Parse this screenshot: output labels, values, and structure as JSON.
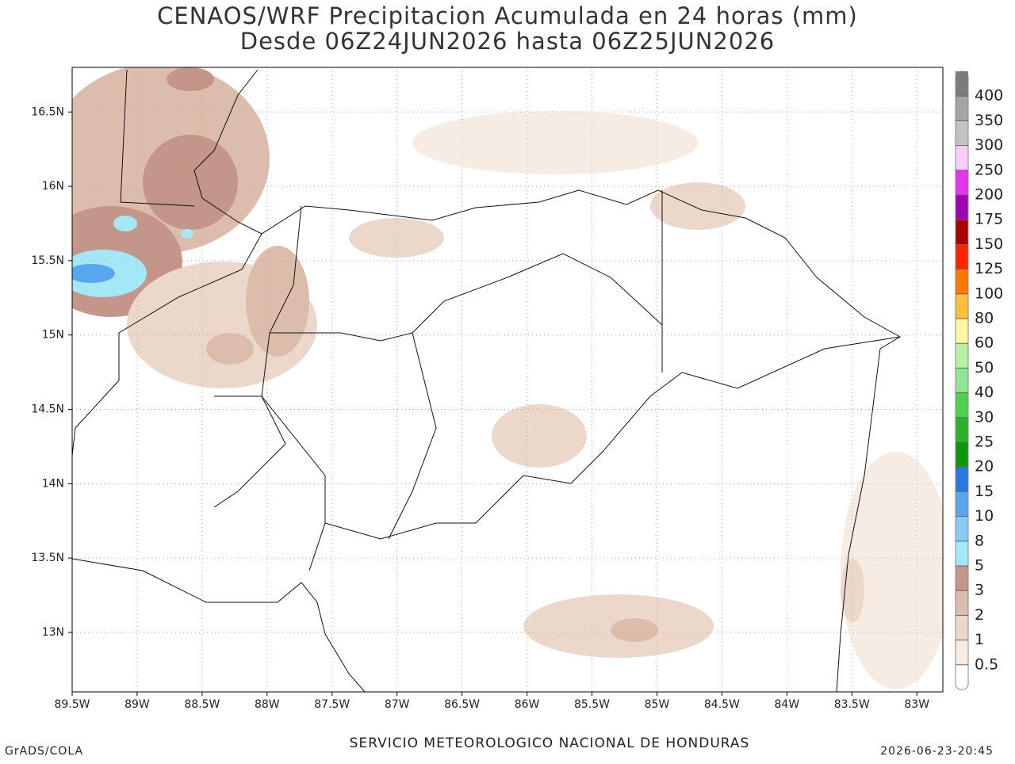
{
  "title": [
    "CENAOS/WRF Precipitacion Acumulada en 24 horas (mm)",
    "Desde 06Z24JUN2026 hasta 06Z25JUN2026"
  ],
  "map": {
    "xlim": [
      -89.5,
      -82.8
    ],
    "ylim": [
      12.6,
      16.8
    ],
    "xticks": [
      {
        "value": -89.5,
        "label": "89.5W"
      },
      {
        "value": -89,
        "label": "89W"
      },
      {
        "value": -88.5,
        "label": "88.5W"
      },
      {
        "value": -88,
        "label": "88W"
      },
      {
        "value": -87.5,
        "label": "87.5W"
      },
      {
        "value": -87,
        "label": "87W"
      },
      {
        "value": -86.5,
        "label": "86.5W"
      },
      {
        "value": -86,
        "label": "86W"
      },
      {
        "value": -85.5,
        "label": "85.5W"
      },
      {
        "value": -85,
        "label": "85W"
      },
      {
        "value": -84.5,
        "label": "84.5W"
      },
      {
        "value": -84,
        "label": "84W"
      },
      {
        "value": -83.5,
        "label": "83.5W"
      },
      {
        "value": -83,
        "label": "83W"
      }
    ],
    "yticks": [
      {
        "value": 16.5,
        "label": "16.5N"
      },
      {
        "value": 16,
        "label": "16N"
      },
      {
        "value": 15.5,
        "label": "15.5N"
      },
      {
        "value": 15,
        "label": "15N"
      },
      {
        "value": 14.5,
        "label": "14.5N"
      },
      {
        "value": 14,
        "label": "14N"
      },
      {
        "value": 13.5,
        "label": "13.5N"
      },
      {
        "value": 13,
        "label": "13N"
      }
    ]
  },
  "colorbar": {
    "levels": [
      0.5,
      1,
      2,
      3,
      5,
      8,
      10,
      15,
      20,
      25,
      30,
      40,
      50,
      60,
      80,
      100,
      125,
      150,
      175,
      200,
      250,
      300,
      350,
      400
    ],
    "colors": [
      "#ffffff",
      "#f6ece4",
      "#ecd8cb",
      "#dcbcaa",
      "#c4968a",
      "#a4e8f8",
      "#8ccaf5",
      "#58a6ee",
      "#2878e0",
      "#0c980c",
      "#28b428",
      "#50d050",
      "#90e690",
      "#b8f0a4",
      "#fff6a4",
      "#fbbf3c",
      "#ff7800",
      "#ff2400",
      "#a80000",
      "#a000b4",
      "#e434ee",
      "#fbcbfb",
      "#c2c2c2",
      "#a4a4a4",
      "#7c7c7c"
    ]
  },
  "footer": {
    "left": "GrADS/COLA",
    "center": "SERVICIO METEOROLOGICO NACIONAL DE HONDURAS",
    "right": "2026-06-23-20:45"
  }
}
